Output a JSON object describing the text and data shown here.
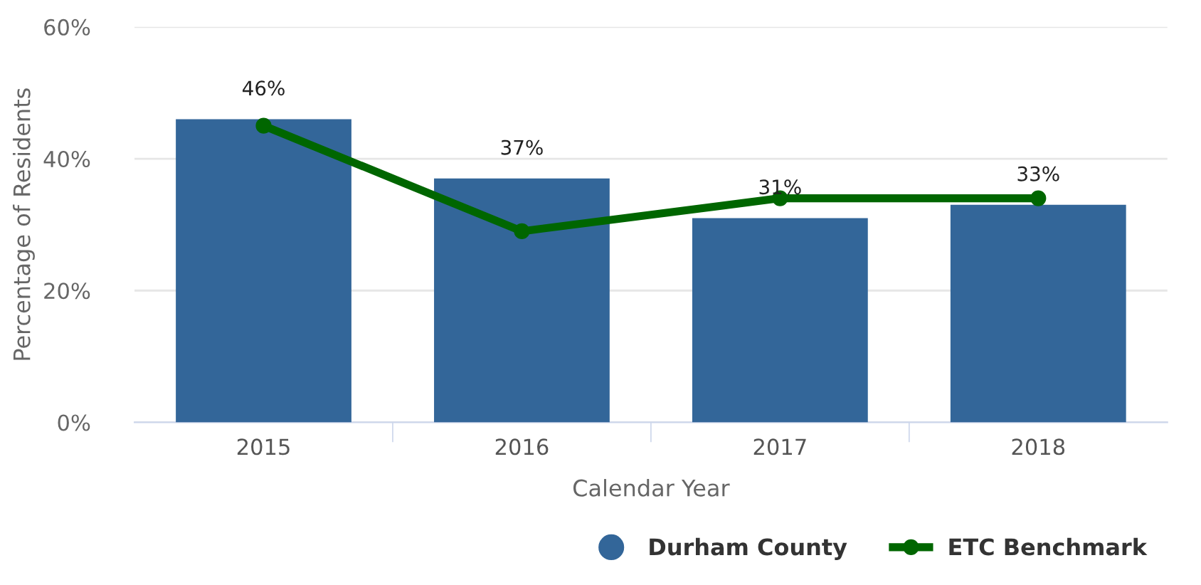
{
  "chart_data": {
    "type": "bar",
    "xlabel": "Calendar Year",
    "ylabel": "Percentage of Residents",
    "categories": [
      "2015",
      "2016",
      "2017",
      "2018"
    ],
    "series": [
      {
        "name": "Durham County",
        "color": "#336699",
        "values": [
          46,
          37,
          31,
          33
        ],
        "value_labels": [
          "46%",
          "37%",
          "31%",
          "33%"
        ]
      },
      {
        "name": "ETC Benchmark",
        "type": "line",
        "color": "#006600",
        "values": [
          45,
          29,
          34,
          34
        ],
        "marker": "circle"
      }
    ],
    "ylim": [
      0,
      60
    ],
    "yticks": [
      {
        "value": 0,
        "label": "0%"
      },
      {
        "value": 20,
        "label": "20%"
      },
      {
        "value": 40,
        "label": "40%"
      },
      {
        "value": 60,
        "label": "60%"
      }
    ],
    "grid": "y",
    "legend": "bottom right"
  }
}
